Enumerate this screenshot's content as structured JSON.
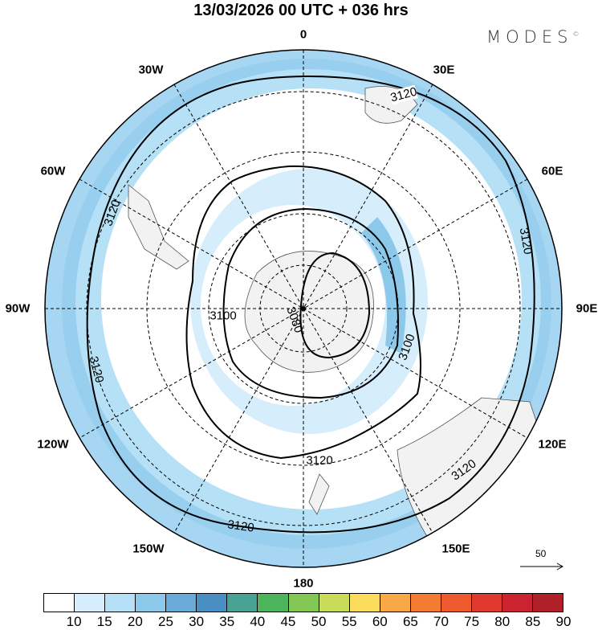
{
  "title": "13/03/2026  00 UTC  + 036 hrs",
  "logo": "MODES",
  "longitude_labels": [
    "0",
    "30E",
    "60E",
    "90E",
    "120E",
    "150E",
    "180",
    "150W",
    "120W",
    "90W",
    "60W",
    "30W"
  ],
  "contour_labels": [
    "3120",
    "3120",
    "3120",
    "3120",
    "3120",
    "3120",
    "3120",
    "3100",
    "3100",
    "3080"
  ],
  "wind_reference": {
    "label": "50"
  },
  "colorbar": {
    "labels": [
      "10",
      "15",
      "20",
      "25",
      "30",
      "35",
      "40",
      "45",
      "50",
      "55",
      "60",
      "65",
      "70",
      "75",
      "80",
      "85",
      "90"
    ],
    "colors": [
      "#ffffff",
      "#d6eefb",
      "#b5e0f6",
      "#8cc8ea",
      "#6aaad9",
      "#4a8fc4",
      "#48a394",
      "#4db55c",
      "#82c653",
      "#c8dc5a",
      "#fbdc5c",
      "#f8a945",
      "#f47b32",
      "#ee5a2e",
      "#e03a30",
      "#cb2430",
      "#b02029",
      "#8c1c20"
    ]
  }
}
